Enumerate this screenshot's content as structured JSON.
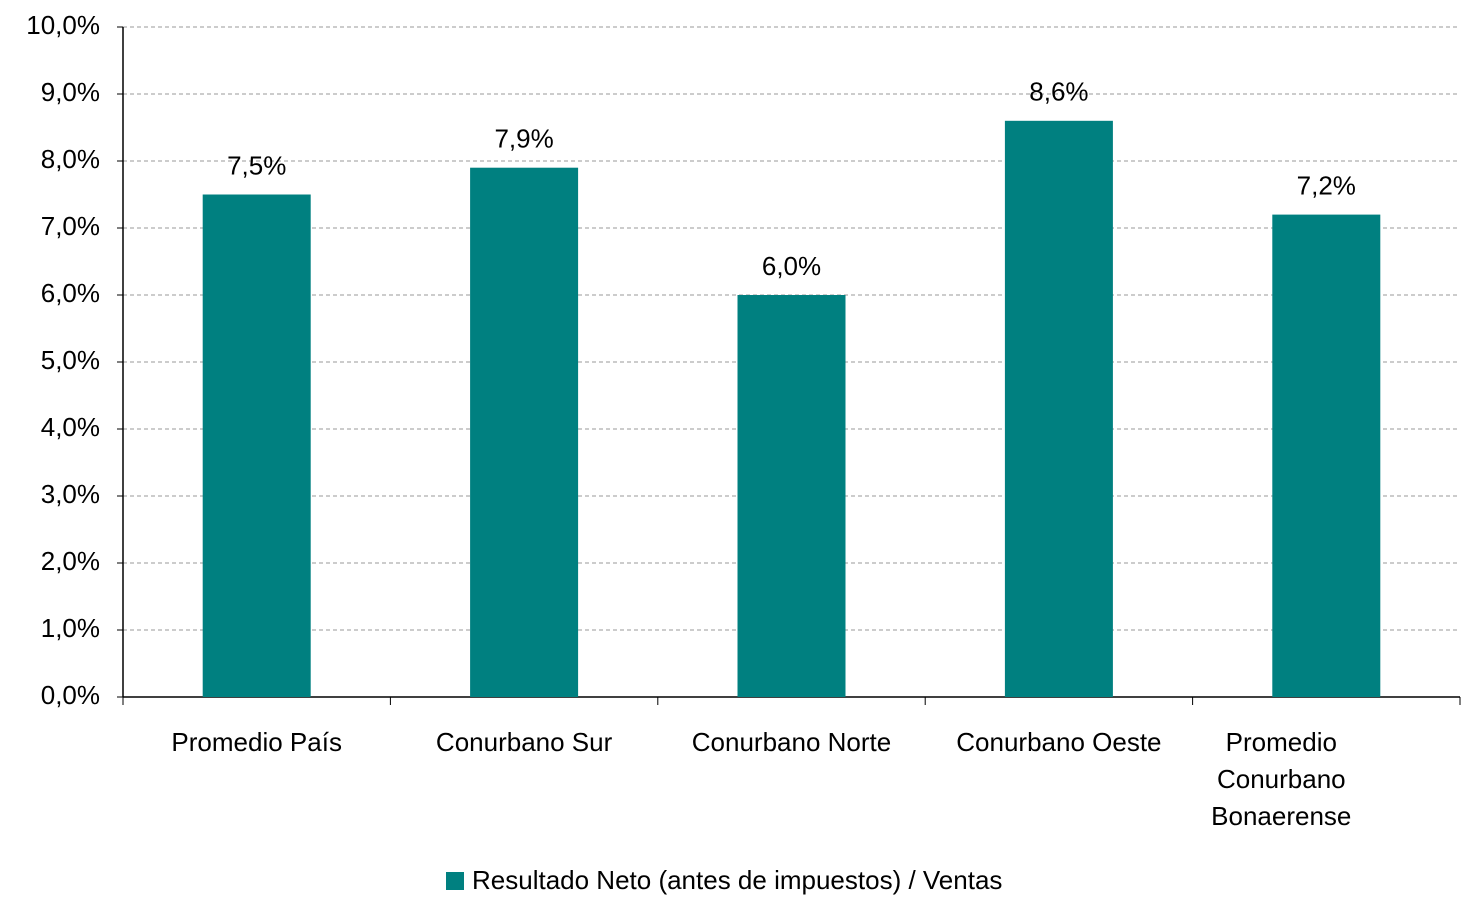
{
  "chart_data": {
    "type": "bar",
    "categories": [
      "Promedio País",
      "Conurbano Sur",
      "Conurbano Norte",
      "Conurbano Oeste",
      "Promedio Conurbano Bonaerense"
    ],
    "series": [
      {
        "name": "Resultado Neto (antes de impuestos) / Ventas",
        "color": "#008080",
        "values": [
          7.5,
          7.9,
          6.0,
          8.6,
          7.2
        ],
        "value_labels": [
          "7,5%",
          "7,9%",
          "6,0%",
          "8,6%",
          "7,2%"
        ]
      }
    ],
    "ylim": [
      0,
      10
    ],
    "yticks": [
      {
        "value": 0,
        "label": "0,0%"
      },
      {
        "value": 1,
        "label": "1,0%"
      },
      {
        "value": 2,
        "label": "2,0%"
      },
      {
        "value": 3,
        "label": "3,0%"
      },
      {
        "value": 4,
        "label": "4,0%"
      },
      {
        "value": 5,
        "label": "5,0%"
      },
      {
        "value": 6,
        "label": "6,0%"
      },
      {
        "value": 7,
        "label": "7,0%"
      },
      {
        "value": 8,
        "label": "8,0%"
      },
      {
        "value": 9,
        "label": "9,0%"
      },
      {
        "value": 10,
        "label": "10,0%"
      }
    ],
    "grid": true,
    "legend": "bottom"
  }
}
